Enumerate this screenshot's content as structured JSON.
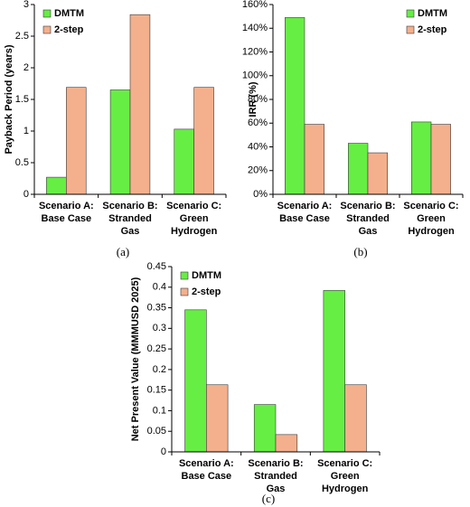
{
  "chart_data": [
    {
      "type": "bar",
      "caption": "(a)",
      "ylabel": "Payback Period (years)",
      "categories": [
        [
          "Scenario A:",
          "Base Case"
        ],
        [
          "Scenario B:",
          "Stranded",
          "Gas"
        ],
        [
          "Scenario C:",
          "Green",
          "Hydrogen"
        ]
      ],
      "series": [
        {
          "name": "DMTM",
          "color": "#66ee44",
          "values": [
            0.27,
            1.65,
            1.03
          ]
        },
        {
          "name": "2-step",
          "color": "#f4b08c",
          "values": [
            1.69,
            2.84,
            1.69
          ]
        }
      ],
      "ylim": [
        0,
        3
      ],
      "yticks": [
        0,
        0.5,
        1,
        1.5,
        2,
        2.5,
        3
      ],
      "legend": "upper left"
    },
    {
      "type": "bar",
      "caption": "(b)",
      "ylabel": "IRR (%)",
      "categories": [
        [
          "Scenario A:",
          "Base Case"
        ],
        [
          "Scenario B:",
          "Stranded",
          "Gas"
        ],
        [
          "Scenario C:",
          "Green",
          "Hydrogen"
        ]
      ],
      "series": [
        {
          "name": "DMTM",
          "color": "#66ee44",
          "values": [
            149,
            43,
            61
          ]
        },
        {
          "name": "2-step",
          "color": "#f4b08c",
          "values": [
            59,
            35,
            59
          ]
        }
      ],
      "ylim": [
        0,
        160
      ],
      "yticks": [
        {
          "value": 0,
          "label": "0%"
        },
        {
          "value": 20,
          "label": "20%"
        },
        {
          "value": 40,
          "label": "40%"
        },
        {
          "value": 60,
          "label": "60%"
        },
        {
          "value": 80,
          "label": "80%"
        },
        {
          "value": 100,
          "label": "100%"
        },
        {
          "value": 120,
          "label": "120%"
        },
        {
          "value": 140,
          "label": "140%"
        },
        {
          "value": 160,
          "label": "160%"
        }
      ],
      "legend": "upper right"
    },
    {
      "type": "bar",
      "caption": "(c)",
      "ylabel": "Net Present Value (MMMUSD 2025)",
      "categories": [
        [
          "Scenario A:",
          "Base Case"
        ],
        [
          "Scenario B:",
          "Stranded",
          "Gas"
        ],
        [
          "Scenario C:",
          "Green",
          "Hydrogen"
        ]
      ],
      "series": [
        {
          "name": "DMTM",
          "color": "#66ee44",
          "values": [
            0.345,
            0.115,
            0.392
          ]
        },
        {
          "name": "2-step",
          "color": "#f4b08c",
          "values": [
            0.163,
            0.042,
            0.163
          ]
        }
      ],
      "ylim": [
        0,
        0.45
      ],
      "yticks": [
        0,
        0.05,
        0.1,
        0.15,
        0.2,
        0.25,
        0.3,
        0.35,
        0.4,
        0.45
      ],
      "legend": "upper left"
    }
  ]
}
